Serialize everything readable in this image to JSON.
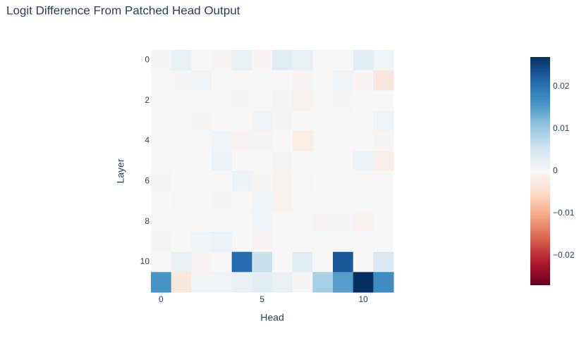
{
  "chart_data": {
    "type": "heatmap",
    "title": "Logit Difference From Patched Head Output",
    "xlabel": "Head",
    "ylabel": "Layer",
    "x": [
      0,
      1,
      2,
      3,
      4,
      5,
      6,
      7,
      8,
      9,
      10,
      11
    ],
    "y": [
      0,
      1,
      2,
      3,
      4,
      5,
      6,
      7,
      8,
      9,
      10,
      11
    ],
    "z": [
      [
        0.0005,
        0.002,
        0,
        -0.0005,
        0.002,
        -0.0005,
        0.003,
        0.002,
        0,
        0,
        0.003,
        0.001
      ],
      [
        0,
        0.0005,
        0.001,
        0,
        0,
        0,
        0,
        -0.0005,
        0,
        0.0008,
        -0.0005,
        -0.003
      ],
      [
        0,
        0,
        0,
        0,
        0.0005,
        0,
        0.0005,
        -0.001,
        0,
        0.0005,
        0,
        0
      ],
      [
        0,
        0,
        -0.0003,
        0,
        0,
        0.001,
        -0.0003,
        0,
        0,
        0,
        0,
        0.001
      ],
      [
        0,
        0,
        0.0003,
        0.001,
        -0.0005,
        -0.0003,
        0,
        -0.002,
        0,
        0,
        0,
        -0.0003
      ],
      [
        0,
        0,
        0,
        0.0015,
        0,
        0,
        -0.0003,
        0,
        0,
        0,
        0.0015,
        -0.0015
      ],
      [
        0.0005,
        0,
        0,
        0,
        0.0015,
        -0.0003,
        -0.001,
        0.0003,
        0,
        0,
        0,
        0
      ],
      [
        0,
        0.0003,
        0,
        -0.0003,
        0,
        0.001,
        -0.001,
        0,
        0,
        0,
        0,
        0
      ],
      [
        0,
        0,
        0,
        0,
        0,
        0.0008,
        0,
        0.0003,
        -0.0005,
        0.0005,
        -0.0008,
        0
      ],
      [
        0.0005,
        0,
        0.0008,
        0.0015,
        0,
        -0.0005,
        0,
        0,
        0,
        0,
        0,
        0
      ],
      [
        0,
        0.002,
        -0.0005,
        0,
        0.021,
        0.006,
        0,
        0.003,
        0,
        0.023,
        0,
        0.004
      ],
      [
        0.016,
        -0.003,
        0.0008,
        0.001,
        0.002,
        0.003,
        0.002,
        -0.0003,
        0.009,
        0.015,
        0.027,
        0.017
      ]
    ],
    "xlim": [
      -0.5,
      11.5
    ],
    "xticks": [
      0,
      5,
      10
    ],
    "ylim": [
      -0.5,
      11.5
    ],
    "yticks": [
      0,
      2,
      4,
      6,
      8,
      10
    ],
    "y_reversed": true,
    "zlim": [
      -0.027,
      0.027
    ],
    "zticks": [
      {
        "value": -0.02,
        "label": "−0.02"
      },
      {
        "value": -0.01,
        "label": "−0.01"
      },
      0,
      0.01,
      0.02
    ],
    "colorscale": [
      "#67001f",
      "#b2182b",
      "#d6604d",
      "#f4a582",
      "#fddbc7",
      "#f7f7f7",
      "#d1e5f0",
      "#92c5de",
      "#4393c3",
      "#2166ac",
      "#053061"
    ]
  }
}
